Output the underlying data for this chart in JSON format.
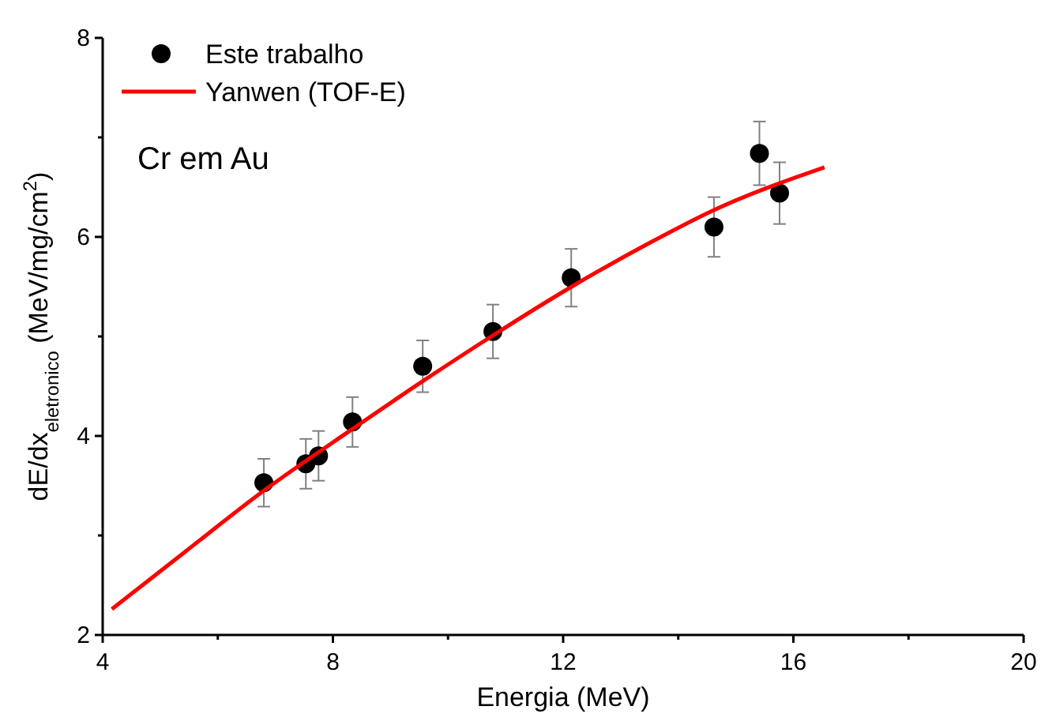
{
  "chart_data": {
    "type": "scatter",
    "xlabel": "Energia (MeV)",
    "ylabel": "dE/dx$_{eletronico}$ (MeV/mg/cm$^{2}$)",
    "annotations": [
      "Cr em Au"
    ],
    "xlim": [
      4,
      20
    ],
    "xticks": [
      4,
      {
        "value": 6,
        "label": null
      },
      8,
      {
        "value": 10,
        "label": null
      },
      12,
      {
        "value": 14,
        "label": null
      },
      16,
      {
        "value": 18,
        "label": null
      },
      20
    ],
    "ylim": [
      2,
      8
    ],
    "yticks": [
      2,
      {
        "value": 3,
        "label": null
      },
      4,
      {
        "value": 5,
        "label": null
      },
      6,
      {
        "value": 7,
        "label": null
      },
      8
    ],
    "grid": false,
    "legend": "top left",
    "marker": "circle",
    "series": [
      {
        "name": "Este trabalho",
        "color": "#000000",
        "x": [
          6.8,
          7.53,
          7.75,
          8.34,
          9.56,
          10.78,
          12.14,
          14.62,
          15.41,
          15.76
        ],
        "values": [
          3.53,
          3.72,
          3.8,
          4.14,
          4.7,
          5.05,
          5.59,
          6.1,
          6.84,
          6.44
        ],
        "errors": [
          0.24,
          0.25,
          0.25,
          0.25,
          0.26,
          0.27,
          0.29,
          0.3,
          0.32,
          0.31
        ]
      },
      {
        "name": "Yanwen (TOF-E)",
        "type": "line",
        "color": "#ff0000",
        "marker": "none",
        "line_style": "solid",
        "x": [
          4.16,
          5.44,
          6.8,
          8.34,
          9.56,
          10.78,
          12.09,
          13.47,
          14.62,
          16.54
        ],
        "values": [
          2.26,
          2.84,
          3.45,
          4.07,
          4.55,
          5.01,
          5.48,
          5.93,
          6.27,
          6.7
        ]
      }
    ]
  }
}
